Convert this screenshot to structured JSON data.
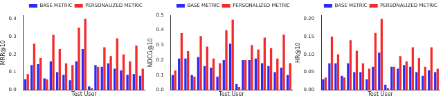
{
  "chart_data": [
    {
      "type": "bar",
      "y_label": "MRR@10",
      "x_label": "Test User",
      "categories": [
        null,
        null,
        null,
        null,
        null,
        null,
        null,
        null,
        null,
        null,
        null,
        null,
        null,
        null,
        null,
        null,
        null,
        null,
        null
      ],
      "series": [
        {
          "name": "BASE METRIC",
          "color": "#2b2bf5",
          "values": [
            0.06,
            0.14,
            0.145,
            0.065,
            0.16,
            0.1,
            0.085,
            0.055,
            0.16,
            0.23,
            0.02,
            0.14,
            0.13,
            0.15,
            0.12,
            0.11,
            0.085,
            0.09,
            0.08
          ]
        },
        {
          "name": "PERSONALIZED METRIC",
          "color": "#f52b2b",
          "values": [
            0.09,
            0.26,
            0.18,
            0.06,
            0.31,
            0.23,
            0.15,
            0.14,
            0.35,
            0.4,
            0.01,
            0.13,
            0.24,
            0.19,
            0.29,
            0.2,
            0.16,
            0.25,
            0.12
          ]
        }
      ],
      "ylim": [
        0,
        0.42
      ],
      "yticks": [
        {
          "value": 0,
          "label": "0.0"
        },
        0.1,
        0.2,
        0.3,
        0.4
      ],
      "grid": false,
      "legend": "upper right",
      "tick_labels": "y"
    },
    {
      "type": "bar",
      "y_label": "NDCG@10",
      "x_label": "Test User",
      "categories": [
        null,
        null,
        null,
        null,
        null,
        null,
        null,
        null,
        null,
        null,
        null,
        null,
        null,
        null,
        null,
        null,
        null,
        null,
        null
      ],
      "series": [
        {
          "name": "BASE METRIC",
          "color": "#2b2bf5",
          "values": [
            0.1,
            0.21,
            0.21,
            0.1,
            0.22,
            0.16,
            0.15,
            0.09,
            0.2,
            0.31,
            0.04,
            0.2,
            0.2,
            0.21,
            0.18,
            0.16,
            0.12,
            0.15,
            0.1
          ]
        },
        {
          "name": "PERSONALIZED METRIC",
          "color": "#f52b2b",
          "values": [
            0.13,
            0.38,
            0.26,
            0.09,
            0.36,
            0.29,
            0.21,
            0.18,
            0.4,
            0.47,
            0.02,
            0.2,
            0.3,
            0.27,
            0.35,
            0.28,
            0.21,
            0.37,
            0.18
          ]
        }
      ],
      "ylim": [
        0,
        0.5
      ],
      "yticks": [
        {
          "value": 0,
          "label": "0.0"
        },
        0.1,
        0.2,
        0.3,
        0.4,
        0.5
      ],
      "grid": false,
      "legend": "upper right",
      "tick_labels": "y"
    },
    {
      "type": "bar",
      "y_label": "HR@10",
      "x_label": "Test User",
      "categories": [
        null,
        null,
        null,
        null,
        null,
        null,
        null,
        null,
        null,
        null,
        null,
        null,
        null,
        null,
        null,
        null,
        null,
        null,
        null
      ],
      "series": [
        {
          "name": "BASE METRIC",
          "color": "#2b2bf5",
          "values": [
            0.03,
            0.075,
            0.075,
            0.04,
            0.075,
            0.05,
            0.05,
            0.03,
            0.065,
            0.105,
            0.015,
            0.065,
            0.06,
            0.07,
            0.065,
            0.05,
            0.04,
            0.055,
            0.05
          ]
        },
        {
          "name": "PERSONALIZED METRIC",
          "color": "#f52b2b",
          "values": [
            0.035,
            0.15,
            0.1,
            0.035,
            0.14,
            0.11,
            0.075,
            0.06,
            0.16,
            0.2,
            0.005,
            0.065,
            0.095,
            0.08,
            0.12,
            0.09,
            0.065,
            0.12,
            0.06
          ]
        }
      ],
      "ylim": [
        0,
        0.21
      ],
      "yticks": [
        {
          "value": 0,
          "label": "0.00"
        },
        {
          "value": 0.05,
          "label": "0.05"
        },
        {
          "value": 0.1,
          "label": "0.10"
        },
        {
          "value": 0.15,
          "label": "0.15"
        },
        {
          "value": 0.2,
          "label": "0.20"
        }
      ],
      "grid": false,
      "legend": "upper right",
      "tick_labels": "y"
    }
  ]
}
